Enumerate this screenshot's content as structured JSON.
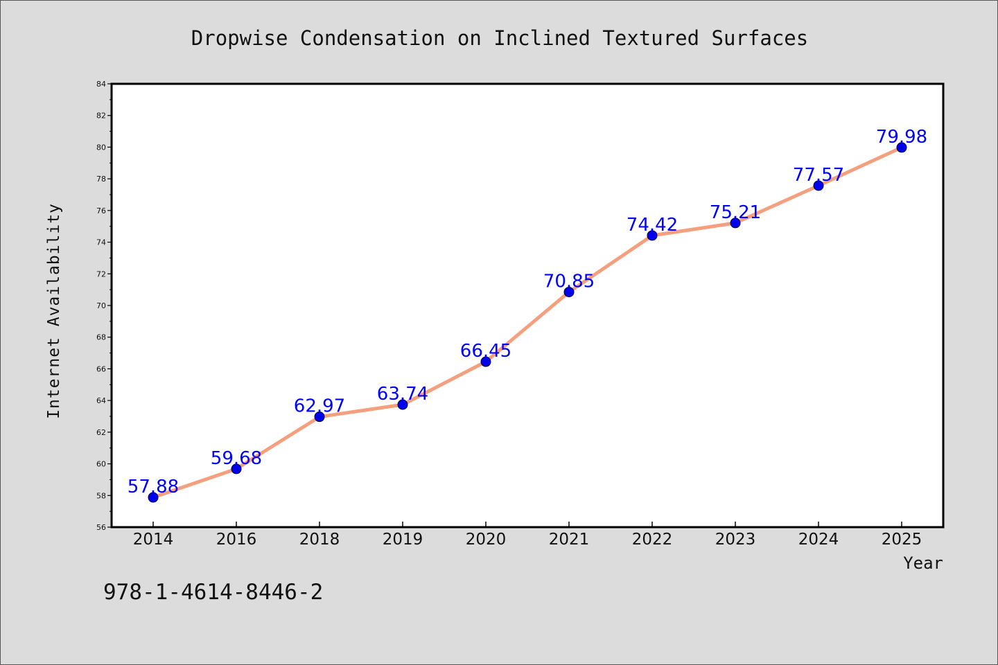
{
  "chart_data": {
    "type": "line",
    "title": "Dropwise Condensation on Inclined Textured Surfaces",
    "xlabel": "Year",
    "ylabel": "Internet Availability",
    "categories": [
      "2014",
      "2016",
      "2018",
      "2019",
      "2020",
      "2021",
      "2022",
      "2023",
      "2024",
      "2025"
    ],
    "series": [
      {
        "values": [
          57.88,
          59.68,
          62.97,
          63.74,
          66.45,
          70.85,
          74.42,
          75.21,
          77.57,
          79.98
        ],
        "data_labels": [
          "57.88",
          "59.68",
          "62.97",
          "63.74",
          "66.45",
          "70.85",
          "74.42",
          "75.21",
          "77.57",
          "79.98"
        ],
        "line_color": "#f4a07e",
        "marker_color": "#0000ee"
      }
    ],
    "ylim": [
      56,
      84
    ],
    "y_ticks": [
      "56",
      "58",
      "60",
      "62",
      "64",
      "66",
      "68",
      "70",
      "72",
      "74",
      "76",
      "78",
      "80",
      "82",
      "84"
    ],
    "grid": false,
    "legend": "none",
    "data_label_color": "#0000ff"
  },
  "footnote": "978-1-4614-8446-2"
}
